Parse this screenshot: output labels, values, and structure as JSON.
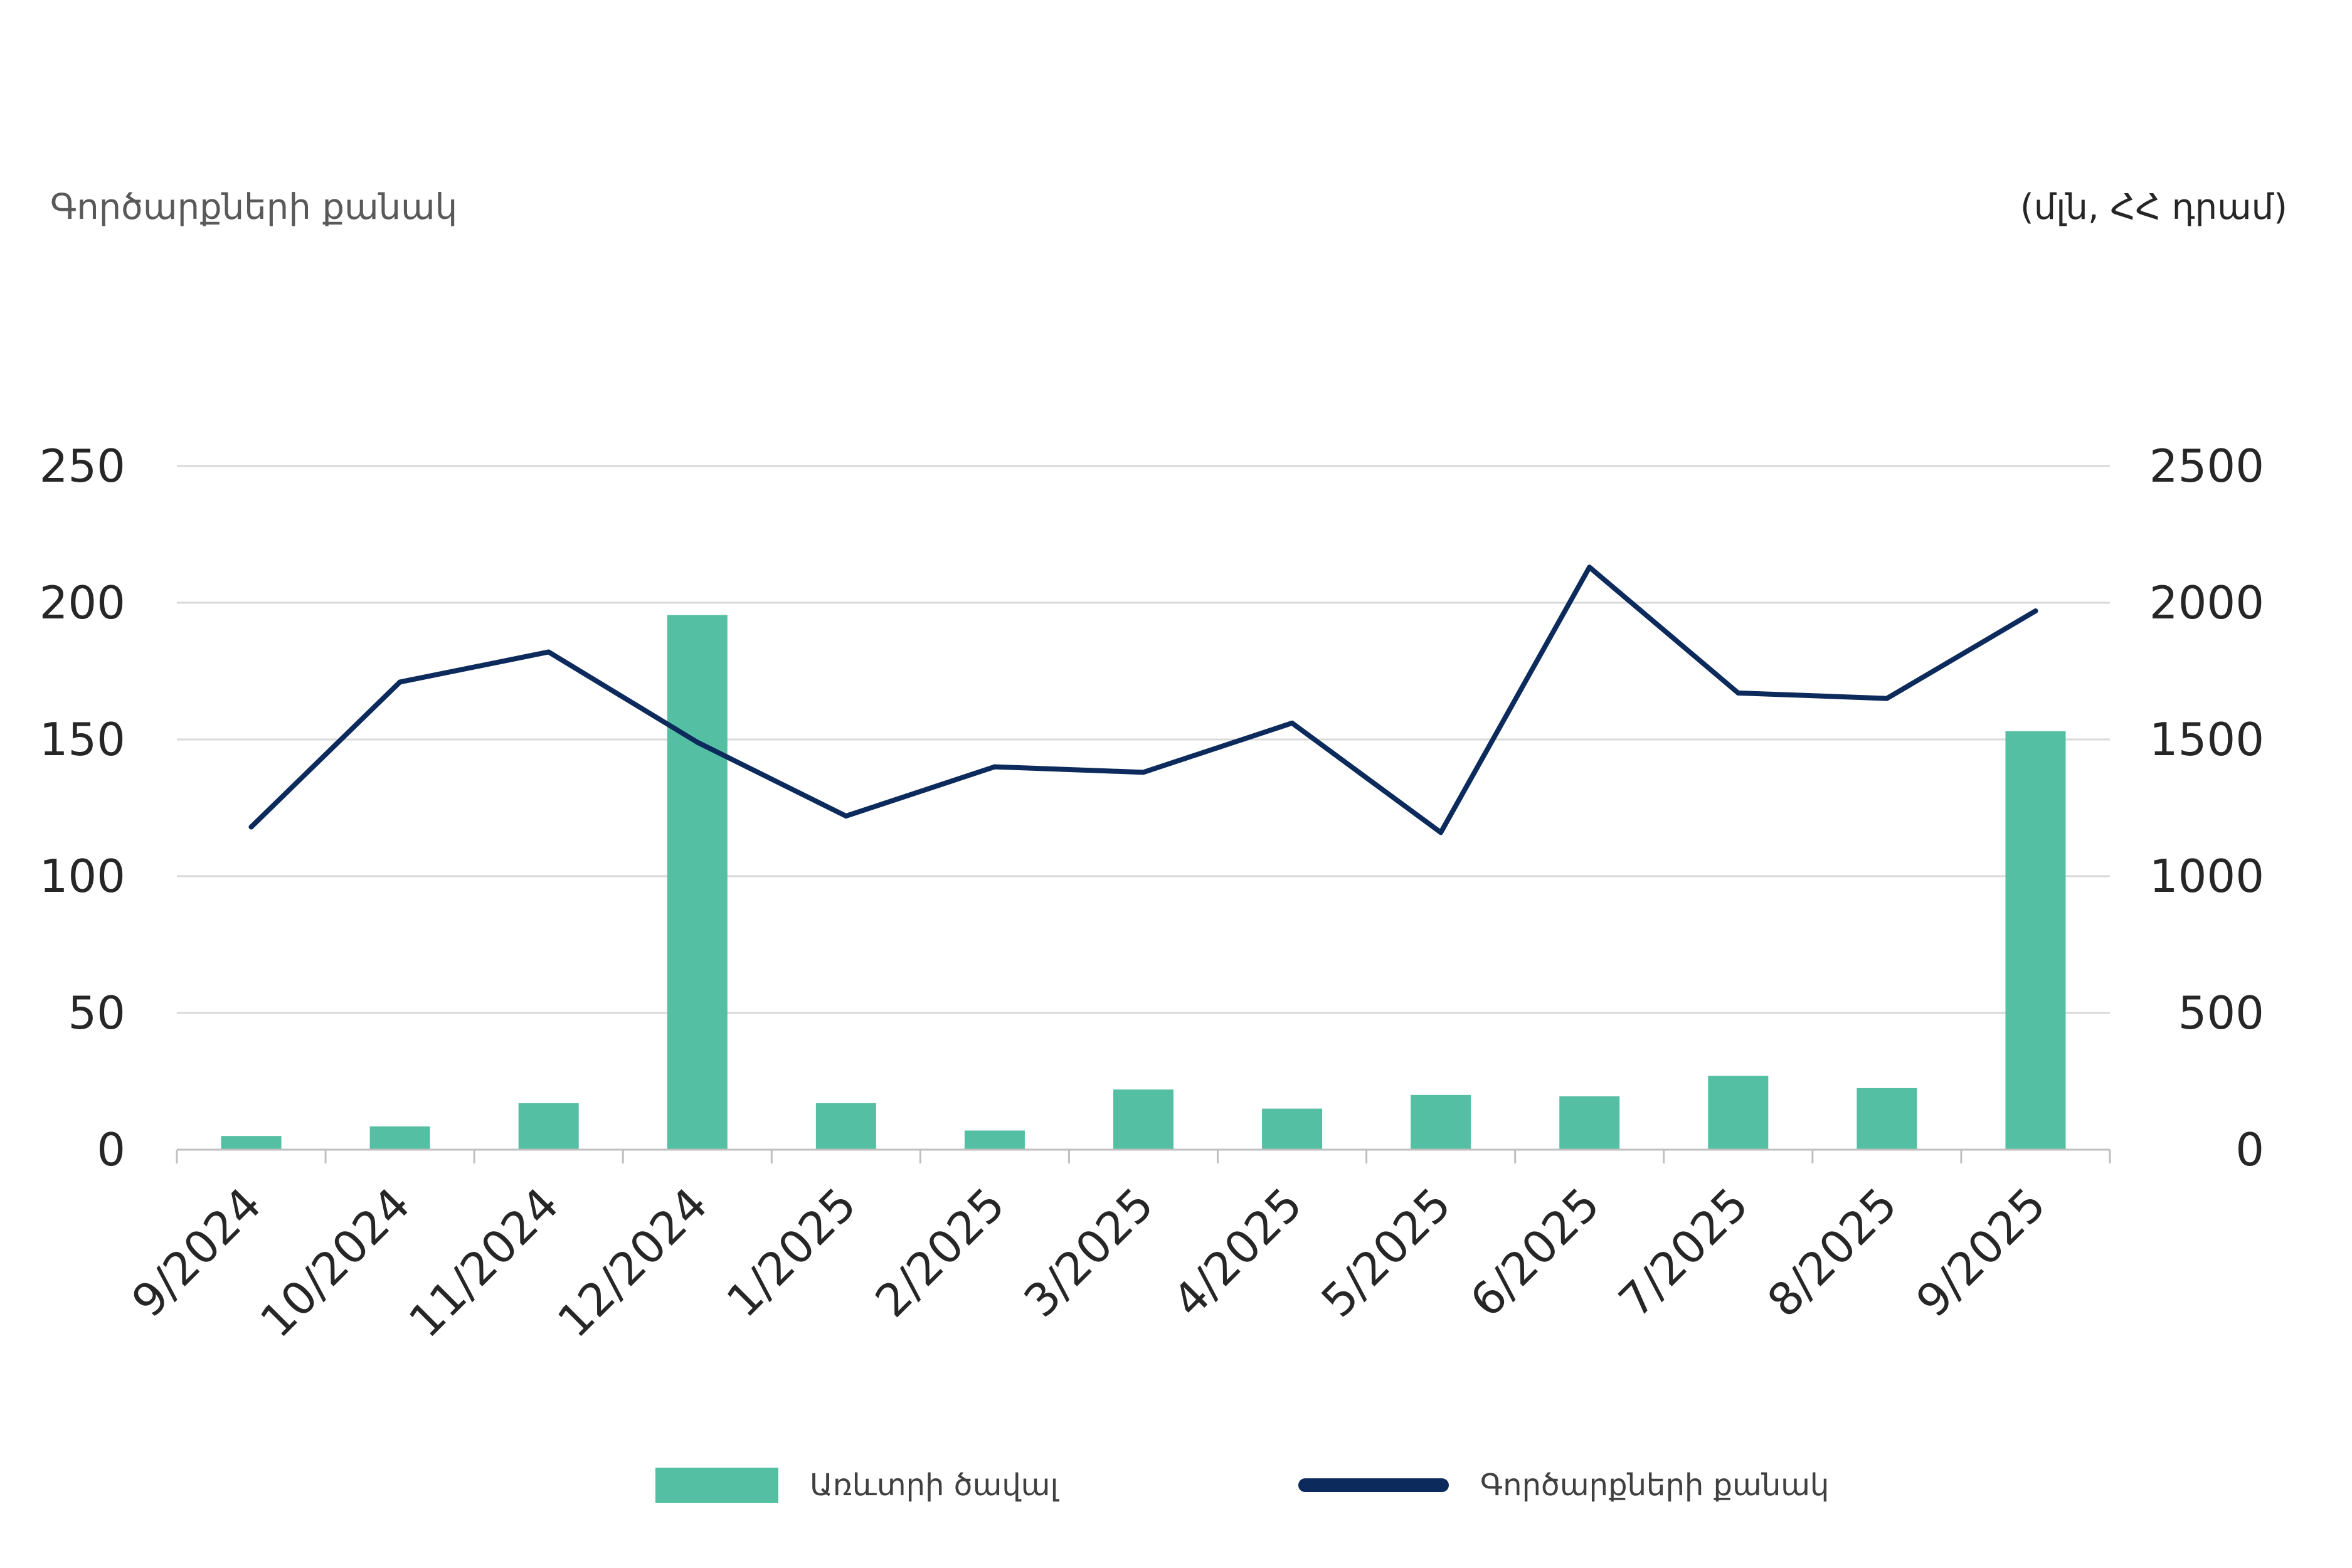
{
  "captions": {
    "left": "Գործարքների քանակ",
    "right": "(մլն, ՀՀ դրամ)"
  },
  "colors": {
    "bar": "#55BFA3",
    "line": "#0C2B5C",
    "grid": "#D9D9D9",
    "axis": "#BFBFBF"
  },
  "chart_data": {
    "type": "bar+line",
    "categories": [
      "9/2024",
      "10/2024",
      "11/2024",
      "12/2024",
      "1/2025",
      "2/2025",
      "3/2025",
      "4/2025",
      "5/2025",
      "6/2025",
      "7/2025",
      "8/2025",
      "9/2025"
    ],
    "series": [
      {
        "name": "Առևտրի ծավալ",
        "type": "bar",
        "axis": "right",
        "values": [
          50,
          85,
          170,
          1955,
          170,
          70,
          220,
          150,
          200,
          195,
          270,
          225,
          1530
        ]
      },
      {
        "name": "Գործարքների քանակ",
        "type": "line",
        "axis": "left",
        "values": [
          118,
          171,
          182,
          149,
          122,
          140,
          138,
          156,
          116,
          213,
          167,
          165,
          197
        ]
      }
    ],
    "left_axis": {
      "min": 0,
      "max": 250,
      "step": 50,
      "ticks": [
        "0",
        "50",
        "100",
        "150",
        "200",
        "250"
      ]
    },
    "right_axis": {
      "min": 0,
      "max": 2500,
      "step": 500,
      "ticks": [
        "0",
        "500",
        "1000",
        "1500",
        "2000",
        "2500"
      ]
    },
    "grid": true,
    "legend_position": "bottom"
  }
}
